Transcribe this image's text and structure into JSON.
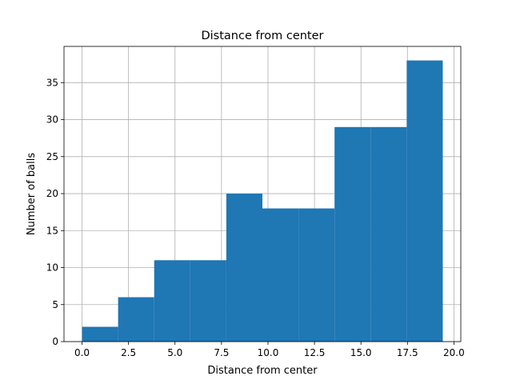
{
  "chart_data": {
    "type": "bar",
    "subtype": "histogram",
    "title": "Distance from center",
    "xlabel": "Distance from center",
    "ylabel": "Number of balls",
    "bins": [
      {
        "start": 0.0,
        "end": 1.94,
        "count": 2
      },
      {
        "start": 1.94,
        "end": 3.88,
        "count": 6
      },
      {
        "start": 3.88,
        "end": 5.82,
        "count": 11
      },
      {
        "start": 5.82,
        "end": 7.76,
        "count": 11
      },
      {
        "start": 7.76,
        "end": 9.7,
        "count": 20
      },
      {
        "start": 9.7,
        "end": 11.64,
        "count": 18
      },
      {
        "start": 11.64,
        "end": 13.58,
        "count": 18
      },
      {
        "start": 13.58,
        "end": 15.52,
        "count": 29
      },
      {
        "start": 15.52,
        "end": 17.46,
        "count": 29
      },
      {
        "start": 17.46,
        "end": 19.4,
        "count": 38
      }
    ],
    "xlim": [
      -0.97,
      20.37
    ],
    "ylim": [
      0,
      39.9
    ],
    "xticks": [
      0.0,
      2.5,
      5.0,
      7.5,
      10.0,
      12.5,
      15.0,
      17.5,
      20.0
    ],
    "xtick_labels": [
      "0.0",
      "2.5",
      "5.0",
      "7.5",
      "10.0",
      "12.5",
      "15.0",
      "17.5",
      "20.0"
    ],
    "yticks": [
      0,
      5,
      10,
      15,
      20,
      25,
      30,
      35
    ],
    "ytick_labels": [
      "0",
      "5",
      "10",
      "15",
      "20",
      "25",
      "30",
      "35"
    ],
    "grid": true,
    "bar_color": "#1f77b4"
  }
}
